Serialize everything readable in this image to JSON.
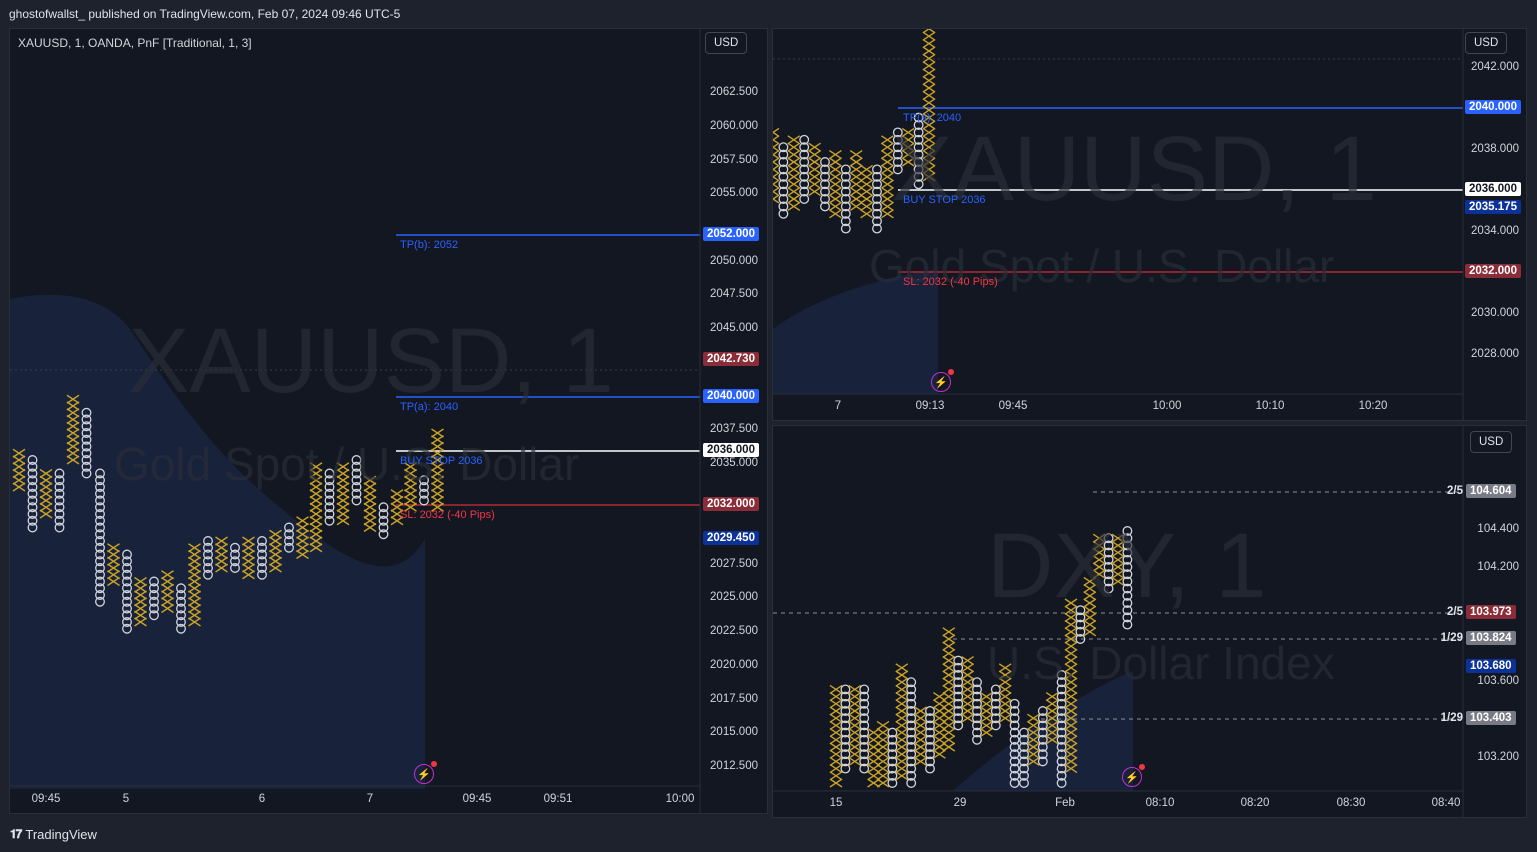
{
  "header": {
    "published_text": "ghostofwallst_ published on TradingView.com, Feb 07, 2024 09:46 UTC-5"
  },
  "footer": {
    "brand": "TradingView",
    "logo_icon": "tradingview-logo-icon"
  },
  "colors": {
    "x_color": "#c9a227",
    "o_color": "#d1d4dc",
    "blue_line": "#2962ff",
    "white_line": "#ffffff",
    "red_line": "#b22833",
    "dark_blue_tag": "#0c3299",
    "red_tag": "#8a2d38",
    "grey_tag": "#787b86",
    "bg": "#131722"
  },
  "left_panel": {
    "title": "XAUUSD, 1, OANDA, PnF [Traditional, 1, 3]",
    "currency": "USD",
    "watermark_symbol": "XAUUSD, 1",
    "watermark_desc": "Gold Spot / U.S. Dollar",
    "price_axis": [
      "2062.500",
      "2060.000",
      "2057.500",
      "2055.000",
      "2050.000",
      "2047.500",
      "2045.000",
      "2037.500",
      "2035.000",
      "2027.500",
      "2025.000",
      "2022.500",
      "2020.000",
      "2017.500",
      "2015.000",
      "2012.500"
    ],
    "price_tags": [
      {
        "label": "2052.000",
        "kind": "blue"
      },
      {
        "label": "2042.730",
        "kind": "red"
      },
      {
        "label": "2040.000",
        "kind": "blue"
      },
      {
        "label": "2036.000",
        "kind": "white"
      },
      {
        "label": "2032.000",
        "kind": "red"
      },
      {
        "label": "2029.450",
        "kind": "darkblue"
      }
    ],
    "lines": [
      {
        "text": "TP(b): 2052",
        "color": "#2962ff"
      },
      {
        "text": "TP(a): 2040",
        "color": "#2962ff"
      },
      {
        "text": "BUY STOP 2036",
        "color": "#2962ff"
      },
      {
        "text": "SL: 2032 (-40 Pips)",
        "color": "#f23645"
      }
    ],
    "time_axis": [
      "09:45",
      "5",
      "6",
      "7",
      "09:45",
      "09:51",
      "10:00"
    ]
  },
  "right_top_panel": {
    "currency": "USD",
    "watermark_symbol": "XAUUSD, 1",
    "watermark_desc": "Gold Spot / U.S. Dollar",
    "price_axis": [
      "2042.000",
      "2038.000",
      "2034.000",
      "2030.000",
      "2028.000"
    ],
    "price_tags": [
      {
        "label": "2040.000",
        "kind": "blue"
      },
      {
        "label": "2036.000",
        "kind": "white"
      },
      {
        "label": "2035.175",
        "kind": "darkblue"
      },
      {
        "label": "2032.000",
        "kind": "red"
      }
    ],
    "lines": [
      {
        "text": "TP(a): 2040",
        "color": "#2962ff"
      },
      {
        "text": "BUY STOP 2036",
        "color": "#2962ff"
      },
      {
        "text": "SL: 2032 (-40 Pips)",
        "color": "#f23645"
      }
    ],
    "time_axis": [
      "7",
      "09:13",
      "09:45",
      "10:00",
      "10:10",
      "10:20"
    ]
  },
  "right_bottom_panel": {
    "currency": "USD",
    "watermark_symbol": "DXY, 1",
    "watermark_desc": "U.S. Dollar Index",
    "price_axis": [
      "104.400",
      "104.200",
      "103.600",
      "103.200"
    ],
    "price_tags": [
      {
        "label": "104.604",
        "kind": "grey",
        "date": "2/5"
      },
      {
        "label": "103.973",
        "kind": "red",
        "date": "2/5"
      },
      {
        "label": "103.824",
        "kind": "grey",
        "date": "1/29"
      },
      {
        "label": "103.680",
        "kind": "darkblue",
        "date": ""
      },
      {
        "label": "103.403",
        "kind": "grey",
        "date": "1/29"
      }
    ],
    "time_axis": [
      "15",
      "29",
      "Feb",
      "08:10",
      "08:20",
      "08:30",
      "08:40"
    ]
  }
}
